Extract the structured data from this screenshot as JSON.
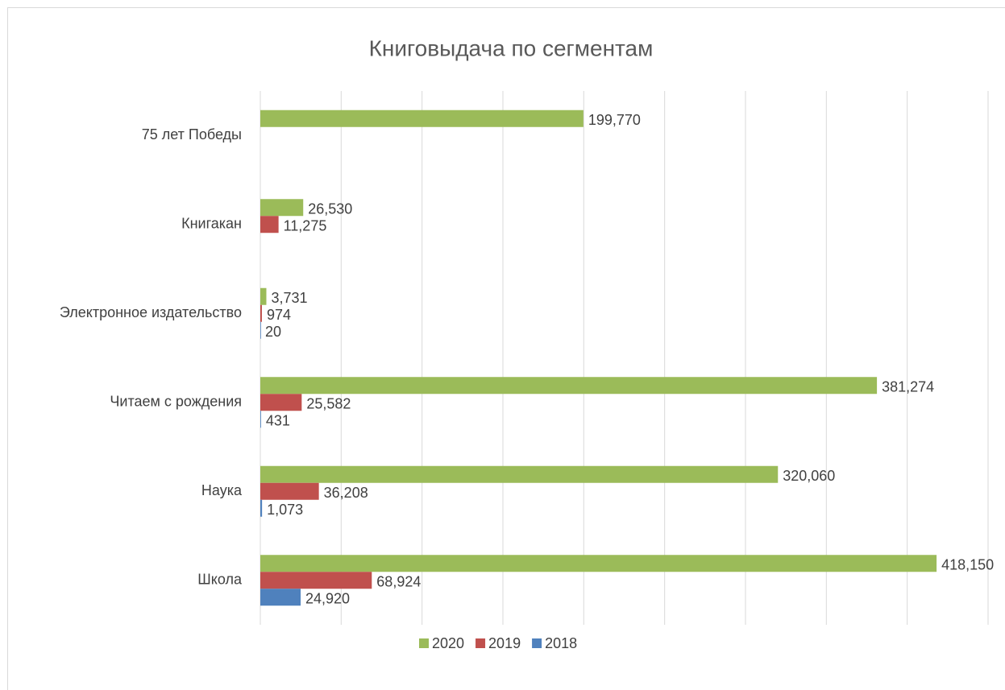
{
  "chart_data": {
    "type": "bar",
    "orientation": "horizontal",
    "title": "Книговыдача по сегментам",
    "categories": [
      "75 лет Победы",
      "Книгакан",
      "Электронное издательство",
      "Читаем с рождения",
      "Наука",
      "Школа"
    ],
    "series": [
      {
        "name": "2020",
        "color": "#9bbb59",
        "values": [
          199770,
          26530,
          3731,
          381274,
          320060,
          418150
        ],
        "value_labels": [
          "199,770",
          "26,530",
          "3,731",
          "381,274",
          "320,060",
          "418,150"
        ]
      },
      {
        "name": "2019",
        "color": "#c0504d",
        "values": [
          null,
          11275,
          974,
          25582,
          36208,
          68924
        ],
        "value_labels": [
          null,
          "11,275",
          "974",
          "25,582",
          "36,208",
          "68,924"
        ]
      },
      {
        "name": "2018",
        "color": "#4f81bd",
        "values": [
          null,
          null,
          20,
          431,
          1073,
          24920
        ],
        "value_labels": [
          null,
          null,
          "20",
          "431",
          "1,073",
          "24,920"
        ]
      }
    ],
    "xlim": [
      0,
      450000
    ],
    "xticks": [
      0,
      50000,
      100000,
      150000,
      200000,
      250000,
      300000,
      350000,
      400000,
      450000
    ],
    "grid": true,
    "legend": "bottom"
  }
}
